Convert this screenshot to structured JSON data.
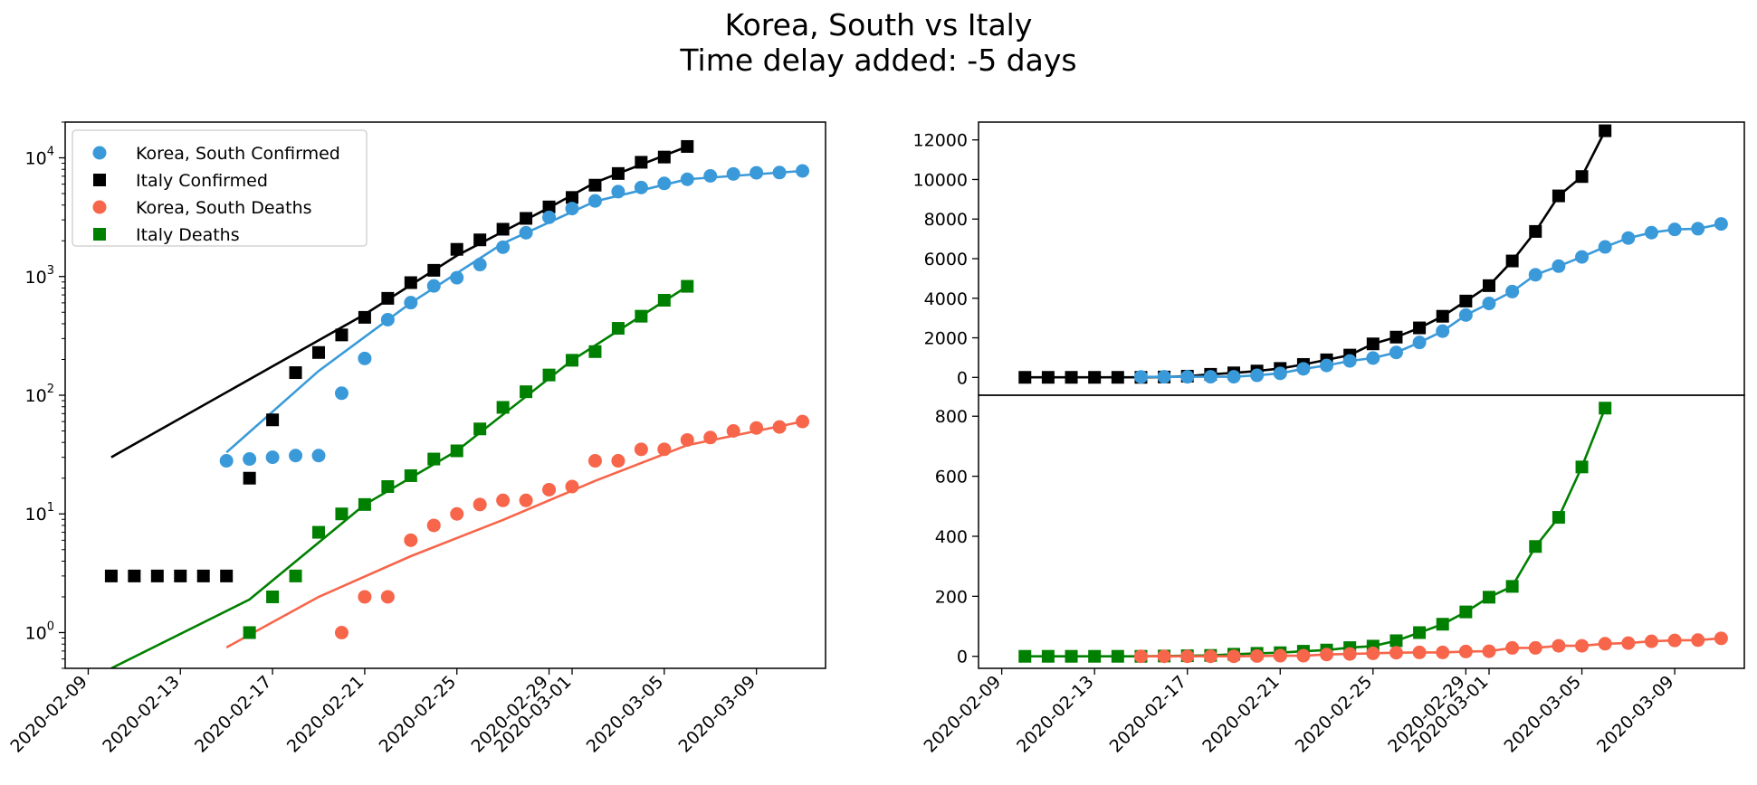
{
  "figure": {
    "title_line1": "Korea, South vs Italy",
    "title_line2": "Time delay added: -5 days"
  },
  "colors": {
    "korea_confirmed": "#3a9ad9",
    "italy_confirmed": "#000000",
    "korea_deaths": "#f7654a",
    "italy_deaths": "#008000"
  },
  "chart_data": [
    {
      "type": "scatter",
      "scale": "log",
      "ylim": [
        0.5,
        20000
      ],
      "xlim": [
        "2020-02-08",
        "2020-03-12"
      ],
      "x_ticks": [
        "2020-02-09",
        "2020-02-13",
        "2020-02-17",
        "2020-02-21",
        "2020-02-25",
        "2020-02-29",
        "2020-03-01",
        "2020-03-05",
        "2020-03-09"
      ],
      "y_ticks": [
        {
          "value": 1,
          "base": "10",
          "exp": "0"
        },
        {
          "value": 10,
          "base": "10",
          "exp": "1"
        },
        {
          "value": 100,
          "base": "10",
          "exp": "2"
        },
        {
          "value": 1000,
          "base": "10",
          "exp": "3"
        },
        {
          "value": 10000,
          "base": "10",
          "exp": "4"
        }
      ],
      "legend_position": "top-left",
      "legend": [
        {
          "label": "Korea, South Confirmed",
          "marker": "circle",
          "color": "#3a9ad9"
        },
        {
          "label": "Italy Confirmed",
          "marker": "square",
          "color": "#000000"
        },
        {
          "label": "Korea, South Deaths",
          "marker": "circle",
          "color": "#f7654a"
        },
        {
          "label": "Italy Deaths",
          "marker": "square",
          "color": "#008000"
        }
      ],
      "series": [
        {
          "key": "italy_confirmed",
          "marker": "square",
          "color": "#000000",
          "x": [
            "2020-02-10",
            "2020-02-11",
            "2020-02-12",
            "2020-02-13",
            "2020-02-14",
            "2020-02-15",
            "2020-02-16",
            "2020-02-17",
            "2020-02-18",
            "2020-02-19",
            "2020-02-20",
            "2020-02-21",
            "2020-02-22",
            "2020-02-23",
            "2020-02-24",
            "2020-02-25",
            "2020-02-26",
            "2020-02-27",
            "2020-02-28",
            "2020-02-29",
            "2020-03-01",
            "2020-03-02",
            "2020-03-03",
            "2020-03-04",
            "2020-03-05",
            "2020-03-06"
          ],
          "y": [
            3,
            3,
            3,
            3,
            3,
            3,
            20,
            62,
            155,
            229,
            322,
            453,
            655,
            888,
            1128,
            1694,
            2036,
            2502,
            3089,
            3858,
            4636,
            5883,
            7375,
            9172,
            10149,
            12462
          ]
        },
        {
          "key": "korea_confirmed",
          "marker": "circle",
          "color": "#3a9ad9",
          "x": [
            "2020-02-15",
            "2020-02-16",
            "2020-02-17",
            "2020-02-18",
            "2020-02-19",
            "2020-02-20",
            "2020-02-21",
            "2020-02-22",
            "2020-02-23",
            "2020-02-24",
            "2020-02-25",
            "2020-02-26",
            "2020-02-27",
            "2020-02-28",
            "2020-02-29",
            "2020-03-01",
            "2020-03-02",
            "2020-03-03",
            "2020-03-04",
            "2020-03-05",
            "2020-03-06",
            "2020-03-07",
            "2020-03-08",
            "2020-03-09",
            "2020-03-10",
            "2020-03-11"
          ],
          "y": [
            28,
            29,
            30,
            31,
            31,
            104,
            204,
            433,
            602,
            833,
            977,
            1261,
            1766,
            2337,
            3150,
            3736,
            4335,
            5186,
            5621,
            6088,
            6593,
            7041,
            7314,
            7478,
            7513,
            7755
          ]
        },
        {
          "key": "korea_deaths",
          "marker": "circle",
          "color": "#f7654a",
          "x": [
            "2020-02-20",
            "2020-02-21",
            "2020-02-22",
            "2020-02-23",
            "2020-02-24",
            "2020-02-25",
            "2020-02-26",
            "2020-02-27",
            "2020-02-28",
            "2020-02-29",
            "2020-03-01",
            "2020-03-02",
            "2020-03-03",
            "2020-03-04",
            "2020-03-05",
            "2020-03-06",
            "2020-03-07",
            "2020-03-08",
            "2020-03-09",
            "2020-03-10",
            "2020-03-11"
          ],
          "y": [
            1,
            2,
            2,
            6,
            8,
            10,
            12,
            13,
            13,
            16,
            17,
            28,
            28,
            35,
            35,
            42,
            44,
            50,
            53,
            54,
            60
          ]
        },
        {
          "key": "italy_deaths",
          "marker": "square",
          "color": "#008000",
          "x": [
            "2020-02-16",
            "2020-02-17",
            "2020-02-18",
            "2020-02-19",
            "2020-02-20",
            "2020-02-21",
            "2020-02-22",
            "2020-02-23",
            "2020-02-24",
            "2020-02-25",
            "2020-02-26",
            "2020-02-27",
            "2020-02-28",
            "2020-02-29",
            "2020-03-01",
            "2020-03-02",
            "2020-03-03",
            "2020-03-04",
            "2020-03-05",
            "2020-03-06"
          ],
          "y": [
            1,
            2,
            3,
            7,
            10,
            12,
            17,
            21,
            29,
            34,
            52,
            79,
            107,
            148,
            197,
            233,
            366,
            463,
            631,
            827
          ]
        }
      ],
      "fits": [
        {
          "key": "italy_confirmed_fit",
          "color": "#000000",
          "x": [
            "2020-02-10",
            "2020-02-21",
            "2020-02-25",
            "2020-02-29",
            "2020-03-02",
            "2020-03-06"
          ],
          "y": [
            30,
            480,
            1500,
            3800,
            6200,
            12462
          ]
        },
        {
          "key": "korea_confirmed_fit",
          "color": "#3a9ad9",
          "x": [
            "2020-02-15",
            "2020-02-19",
            "2020-02-23",
            "2020-02-27",
            "2020-03-02",
            "2020-03-06",
            "2020-03-11"
          ],
          "y": [
            33,
            160,
            600,
            1900,
            4300,
            6600,
            7755
          ]
        },
        {
          "key": "korea_deaths_fit",
          "color": "#f7654a",
          "x": [
            "2020-02-15",
            "2020-02-19",
            "2020-02-23",
            "2020-02-27",
            "2020-03-02",
            "2020-03-06",
            "2020-03-11"
          ],
          "y": [
            0.75,
            2.0,
            4.4,
            8.9,
            19,
            38,
            60
          ]
        },
        {
          "key": "italy_deaths_fit",
          "color": "#008000",
          "x": [
            "2020-02-10",
            "2020-02-16",
            "2020-02-21",
            "2020-02-25",
            "2020-03-01",
            "2020-03-06"
          ],
          "y": [
            0.5,
            1.9,
            12,
            34,
            197,
            827
          ]
        }
      ]
    },
    {
      "type": "line",
      "scale": "linear",
      "ylim": [
        -900,
        12900
      ],
      "xlim": [
        "2020-02-08",
        "2020-03-12"
      ],
      "y_ticks": [
        0,
        2000,
        4000,
        6000,
        8000,
        10000,
        12000
      ],
      "series": [
        {
          "key": "italy_confirmed",
          "marker": "square",
          "color": "#000000",
          "x": [
            "2020-02-10",
            "2020-02-11",
            "2020-02-12",
            "2020-02-13",
            "2020-02-14",
            "2020-02-15",
            "2020-02-16",
            "2020-02-17",
            "2020-02-18",
            "2020-02-19",
            "2020-02-20",
            "2020-02-21",
            "2020-02-22",
            "2020-02-23",
            "2020-02-24",
            "2020-02-25",
            "2020-02-26",
            "2020-02-27",
            "2020-02-28",
            "2020-02-29",
            "2020-03-01",
            "2020-03-02",
            "2020-03-03",
            "2020-03-04",
            "2020-03-05",
            "2020-03-06"
          ],
          "y": [
            3,
            3,
            3,
            3,
            3,
            3,
            20,
            62,
            155,
            229,
            322,
            453,
            655,
            888,
            1128,
            1694,
            2036,
            2502,
            3089,
            3858,
            4636,
            5883,
            7375,
            9172,
            10149,
            12462
          ]
        },
        {
          "key": "korea_confirmed",
          "marker": "circle",
          "color": "#3a9ad9",
          "x": [
            "2020-02-15",
            "2020-02-16",
            "2020-02-17",
            "2020-02-18",
            "2020-02-19",
            "2020-02-20",
            "2020-02-21",
            "2020-02-22",
            "2020-02-23",
            "2020-02-24",
            "2020-02-25",
            "2020-02-26",
            "2020-02-27",
            "2020-02-28",
            "2020-02-29",
            "2020-03-01",
            "2020-03-02",
            "2020-03-03",
            "2020-03-04",
            "2020-03-05",
            "2020-03-06",
            "2020-03-07",
            "2020-03-08",
            "2020-03-09",
            "2020-03-10",
            "2020-03-11"
          ],
          "y": [
            28,
            29,
            30,
            31,
            31,
            104,
            204,
            433,
            602,
            833,
            977,
            1261,
            1766,
            2337,
            3150,
            3736,
            4335,
            5186,
            5621,
            6088,
            6593,
            7041,
            7314,
            7478,
            7513,
            7755
          ]
        }
      ]
    },
    {
      "type": "line",
      "scale": "linear",
      "ylim": [
        -40,
        870
      ],
      "xlim": [
        "2020-02-08",
        "2020-03-12"
      ],
      "x_ticks": [
        "2020-02-09",
        "2020-02-13",
        "2020-02-17",
        "2020-02-21",
        "2020-02-25",
        "2020-02-29",
        "2020-03-01",
        "2020-03-05",
        "2020-03-09"
      ],
      "y_ticks": [
        0,
        200,
        400,
        600,
        800
      ],
      "series": [
        {
          "key": "italy_deaths",
          "marker": "square",
          "color": "#008000",
          "x": [
            "2020-02-10",
            "2020-02-11",
            "2020-02-12",
            "2020-02-13",
            "2020-02-14",
            "2020-02-15",
            "2020-02-16",
            "2020-02-17",
            "2020-02-18",
            "2020-02-19",
            "2020-02-20",
            "2020-02-21",
            "2020-02-22",
            "2020-02-23",
            "2020-02-24",
            "2020-02-25",
            "2020-02-26",
            "2020-02-27",
            "2020-02-28",
            "2020-02-29",
            "2020-03-01",
            "2020-03-02",
            "2020-03-03",
            "2020-03-04",
            "2020-03-05",
            "2020-03-06"
          ],
          "y": [
            0,
            0,
            0,
            0,
            0,
            0,
            1,
            2,
            3,
            7,
            10,
            12,
            17,
            21,
            29,
            34,
            52,
            79,
            107,
            148,
            197,
            233,
            366,
            463,
            631,
            827
          ]
        },
        {
          "key": "korea_deaths",
          "marker": "circle",
          "color": "#f7654a",
          "x": [
            "2020-02-15",
            "2020-02-16",
            "2020-02-17",
            "2020-02-18",
            "2020-02-19",
            "2020-02-20",
            "2020-02-21",
            "2020-02-22",
            "2020-02-23",
            "2020-02-24",
            "2020-02-25",
            "2020-02-26",
            "2020-02-27",
            "2020-02-28",
            "2020-02-29",
            "2020-03-01",
            "2020-03-02",
            "2020-03-03",
            "2020-03-04",
            "2020-03-05",
            "2020-03-06",
            "2020-03-07",
            "2020-03-08",
            "2020-03-09",
            "2020-03-10",
            "2020-03-11"
          ],
          "y": [
            0,
            0,
            0,
            0,
            0,
            1,
            2,
            2,
            6,
            8,
            10,
            12,
            13,
            13,
            16,
            17,
            28,
            28,
            35,
            35,
            42,
            44,
            50,
            53,
            54,
            60
          ]
        }
      ]
    }
  ]
}
